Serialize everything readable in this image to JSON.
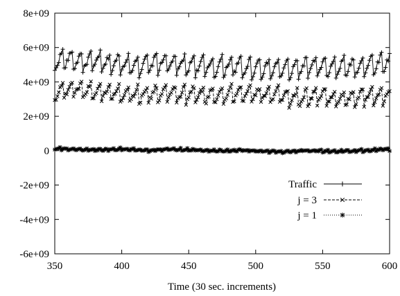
{
  "chart_data": {
    "type": "line",
    "title": "",
    "xlabel": "Time (30 sec. increments)",
    "ylabel": "",
    "xlim": [
      350,
      600
    ],
    "ylim": [
      -6000000000,
      8000000000
    ],
    "grid": false,
    "legend_position": "bottom-right",
    "x_ticks": [
      350,
      400,
      450,
      500,
      550,
      600
    ],
    "x_tick_labels": [
      "350",
      "400",
      "450",
      "500",
      "550",
      "600"
    ],
    "y_ticks": [
      8000000000,
      6000000000,
      4000000000,
      2000000000,
      0,
      -2000000000,
      -4000000000,
      -6000000000
    ],
    "y_tick_labels": [
      "8e+09",
      "6e+09",
      "4e+09",
      "2e+09",
      "0",
      "-2e+09",
      "-4e+09",
      "-6e+09"
    ],
    "x": [
      350,
      358,
      366,
      374,
      382,
      390,
      398,
      406,
      414,
      422,
      430,
      438,
      446,
      454,
      462,
      470,
      478,
      486,
      494,
      502,
      510,
      518,
      526,
      534,
      542,
      550,
      558,
      566,
      574,
      582,
      590,
      598
    ],
    "series": [
      {
        "name": "Traffic",
        "marker": "+",
        "dash": "solid",
        "baseline": 5000000000,
        "amplitude": 600000000,
        "period": 7,
        "noise": 150000000,
        "values": [
          5200000000,
          5350000000,
          5250000000,
          5150000000,
          5200000000,
          5050000000,
          5100000000,
          5000000000,
          4950000000,
          5050000000,
          5150000000,
          5050000000,
          4950000000,
          5000000000,
          4900000000,
          4850000000,
          4950000000,
          4900000000,
          4800000000,
          4850000000,
          4750000000,
          4800000000,
          4700000000,
          4850000000,
          4900000000,
          4850000000,
          4800000000,
          4900000000,
          4850000000,
          4950000000,
          5050000000,
          5150000000
        ]
      },
      {
        "name": "j = 3",
        "marker": "x",
        "dash": "dashed",
        "baseline": 3200000000,
        "amplitude": 500000000,
        "period": 7,
        "noise": 150000000,
        "values": [
          3400000000,
          3550000000,
          3600000000,
          3500000000,
          3450000000,
          3400000000,
          3350000000,
          3300000000,
          3250000000,
          3300000000,
          3350000000,
          3300000000,
          3250000000,
          3300000000,
          3200000000,
          3250000000,
          3300000000,
          3350000000,
          3300000000,
          3250000000,
          3300000000,
          3200000000,
          3100000000,
          3050000000,
          3150000000,
          3200000000,
          3050000000,
          3000000000,
          3100000000,
          3150000000,
          3250000000,
          3200000000
        ]
      },
      {
        "name": "j = 1",
        "marker": "*",
        "dash": "dotted",
        "baseline": 0,
        "amplitude": 60000000,
        "period": 5,
        "noise": 40000000,
        "values": [
          120000000,
          100000000,
          80000000,
          60000000,
          50000000,
          70000000,
          100000000,
          80000000,
          40000000,
          20000000,
          60000000,
          90000000,
          70000000,
          40000000,
          20000000,
          10000000,
          0,
          30000000,
          20000000,
          -20000000,
          -40000000,
          -60000000,
          -30000000,
          0,
          20000000,
          -20000000,
          -40000000,
          -30000000,
          0,
          20000000,
          60000000,
          80000000
        ]
      }
    ]
  }
}
